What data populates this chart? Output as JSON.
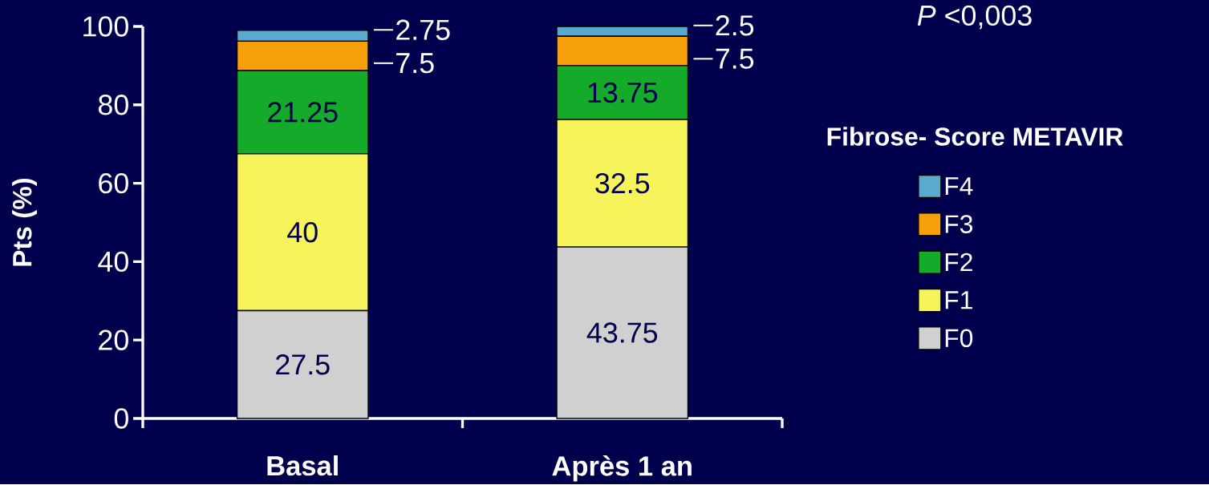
{
  "chart_data": {
    "type": "bar",
    "stacked": true,
    "ylabel": "Pts (%)",
    "legend_title": "Fibrose- Score METAVIR",
    "annotations": [
      "*P* <0,003"
    ],
    "categories": [
      "Basal",
      "Après 1 an"
    ],
    "series": [
      {
        "name": "F0",
        "color": "#d0d0d0",
        "values": [
          27.5,
          43.75
        ]
      },
      {
        "name": "F1",
        "color": "#f7f35a",
        "values": [
          40,
          32.5
        ]
      },
      {
        "name": "F2",
        "color": "#14aa2a",
        "values": [
          21.25,
          13.75
        ]
      },
      {
        "name": "F3",
        "color": "#f5a00a",
        "values": [
          7.5,
          7.5
        ]
      },
      {
        "name": "F4",
        "color": "#5aaad0",
        "values": [
          2.75,
          2.5
        ]
      }
    ],
    "ylim": [
      0,
      100
    ],
    "yticks": [
      0,
      20,
      40,
      60,
      80,
      100
    ],
    "data_labels": true,
    "legend": "right"
  }
}
